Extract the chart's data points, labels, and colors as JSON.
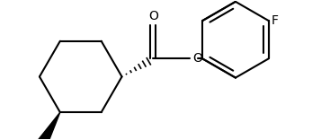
{
  "bg_color": "#ffffff",
  "line_color": "#000000",
  "line_width": 1.5,
  "label_F": "F",
  "label_O_carbonyl": "O",
  "label_O_ester": "O",
  "font_size": 10,
  "figsize": [
    3.57,
    1.56
  ],
  "dpi": 100
}
